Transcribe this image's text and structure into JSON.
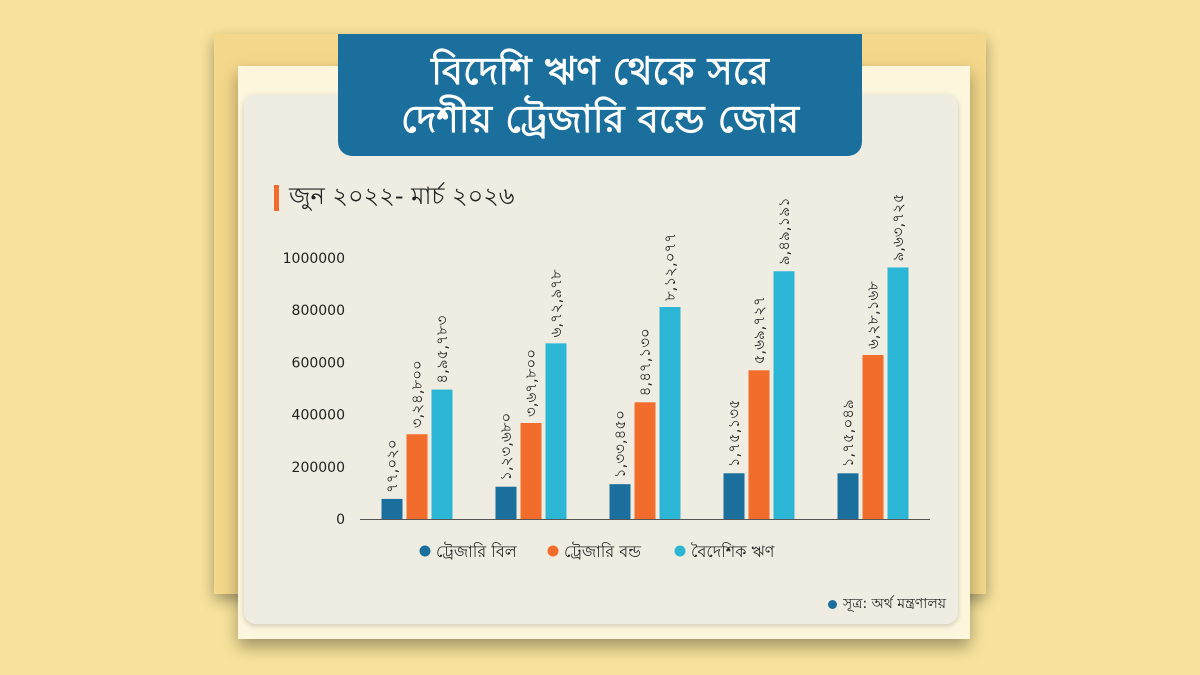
{
  "title": {
    "line1": "বিদেশি ঋণ থেকে সরে",
    "line2": "দেশীয় ট্রেজারি বন্ডে জোর"
  },
  "subtitle": "জুন ২০২২- মার্চ ২০২৬",
  "source": "সূত্র: অর্থ মন্ত্রণালয়",
  "chart_data": {
    "type": "bar",
    "title": "",
    "xlabel": "",
    "ylabel": "",
    "ylim": [
      0,
      1000000
    ],
    "y_ticks": [
      0,
      200000,
      400000,
      600000,
      800000,
      1000000
    ],
    "y_tick_labels": [
      "0",
      "200000",
      "400000",
      "600000",
      "800000",
      "1000000"
    ],
    "categories": [
      "",
      "",
      "",
      "",
      ""
    ],
    "grid": false,
    "legend_position": "bottom",
    "series": [
      {
        "name": "ট্রেজারি বিল",
        "color": "#1a6f9c",
        "values": [
          77020,
          123680,
          133450,
          175135,
          175049
        ],
        "labels": [
          "৭৭,০২০",
          "১,২৩,৬৮০",
          "১,৩৩,৪৫০",
          "১,৭৫,১৩৫",
          "১,৭৫,০৪৯"
        ]
      },
      {
        "name": "ট্রেজারি বন্ড",
        "color": "#f26d2b",
        "values": [
          324800,
          367800,
          447130,
          569727,
          628168
        ],
        "labels": [
          "৩,২৪,৮০০",
          "৩,৬৭,৮০০",
          "৪,৪৭,১৩০",
          "৫,৬৯,৭২৭",
          "৬,২৮,১৬৮"
        ]
      },
      {
        "name": "বৈদেশিক ঋণ",
        "color": "#2bb6d6",
        "values": [
          495783,
          672978,
          812077,
          949191,
          963725
        ],
        "labels": [
          "৪,৯৫,৭৮৩",
          "৬,৭২,৯৭৮",
          "৮,১২,০৭৭",
          "৯,৪৯,১৯১",
          "৯,৬৩,৭২৫"
        ]
      }
    ]
  }
}
